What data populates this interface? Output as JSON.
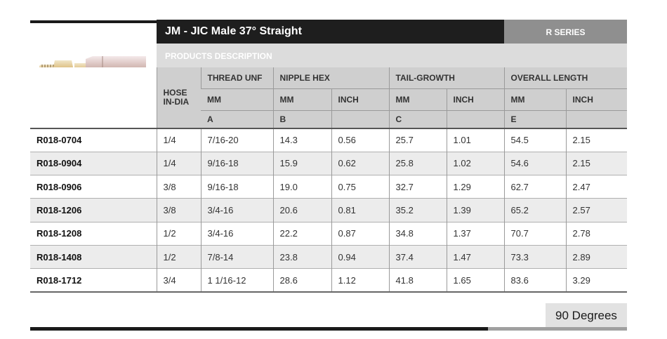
{
  "header": {
    "title": "JM - JIC Male 37° Straight",
    "series": "R SERIES",
    "description_label": "PRODUCTS DESCRIPTION"
  },
  "columns": {
    "hose": "HOSE IN-DIA",
    "thread": "THREAD UNF",
    "nipple_hex": "NIPPLE HEX",
    "tail_growth": "TAIL-GROWTH",
    "overall_length": "OVERALL LENGTH",
    "mm": "MM",
    "inch": "INCH",
    "letter_a": "A",
    "letter_b": "B",
    "letter_c": "C",
    "letter_e": "E"
  },
  "rows": [
    {
      "part": "R018-0704",
      "hose": "1/4",
      "thread": "7/16-20",
      "nipple_mm": "14.3",
      "nipple_inch": "0.56",
      "tail_mm": "25.7",
      "tail_inch": "1.01",
      "overall_mm": "54.5",
      "overall_inch": "2.15"
    },
    {
      "part": "R018-0904",
      "hose": "1/4",
      "thread": "9/16-18",
      "nipple_mm": "15.9",
      "nipple_inch": "0.62",
      "tail_mm": "25.8",
      "tail_inch": "1.02",
      "overall_mm": "54.6",
      "overall_inch": "2.15"
    },
    {
      "part": "R018-0906",
      "hose": "3/8",
      "thread": "9/16-18",
      "nipple_mm": "19.0",
      "nipple_inch": "0.75",
      "tail_mm": "32.7",
      "tail_inch": "1.29",
      "overall_mm": "62.7",
      "overall_inch": "2.47"
    },
    {
      "part": "R018-1206",
      "hose": "3/8",
      "thread": "3/4-16",
      "nipple_mm": "20.6",
      "nipple_inch": "0.81",
      "tail_mm": "35.2",
      "tail_inch": "1.39",
      "overall_mm": "65.2",
      "overall_inch": "2.57"
    },
    {
      "part": "R018-1208",
      "hose": "1/2",
      "thread": "3/4-16",
      "nipple_mm": "22.2",
      "nipple_inch": "0.87",
      "tail_mm": "34.8",
      "tail_inch": "1.37",
      "overall_mm": "70.7",
      "overall_inch": "2.78"
    },
    {
      "part": "R018-1408",
      "hose": "1/2",
      "thread": "7/8-14",
      "nipple_mm": "23.8",
      "nipple_inch": "0.94",
      "tail_mm": "37.4",
      "tail_inch": "1.47",
      "overall_mm": "73.3",
      "overall_inch": "2.89"
    },
    {
      "part": "R018-1712",
      "hose": "3/4",
      "thread": "1 1/16-12",
      "nipple_mm": "28.6",
      "nipple_inch": "1.12",
      "tail_mm": "41.8",
      "tail_inch": "1.65",
      "overall_mm": "83.6",
      "overall_inch": "3.29"
    }
  ],
  "footer": {
    "degrees_label": "90 Degrees"
  },
  "image": {
    "icon": "jic-male-straight-fitting-photo"
  },
  "colors": {
    "title_bg": "#1e1e1e",
    "series_bg": "#8f8f8f",
    "header_bg": "#cfcfcf",
    "stripe_bg": "#ececec"
  }
}
